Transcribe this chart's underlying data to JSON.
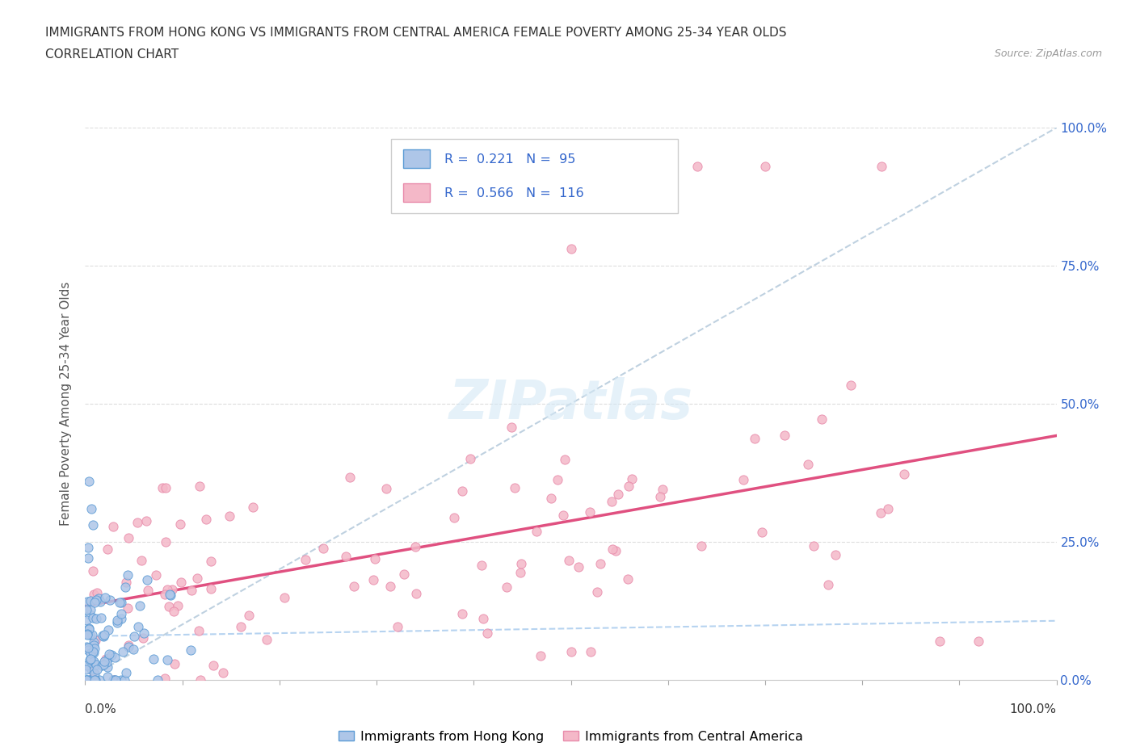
{
  "title_line1": "IMMIGRANTS FROM HONG KONG VS IMMIGRANTS FROM CENTRAL AMERICA FEMALE POVERTY AMONG 25-34 YEAR OLDS",
  "title_line2": "CORRELATION CHART",
  "source": "Source: ZipAtlas.com",
  "xlabel_bottom_left": "0.0%",
  "xlabel_bottom_right": "100.0%",
  "ylabel_left": "Female Poverty Among 25-34 Year Olds",
  "ytick_labels": [
    "0.0%",
    "25.0%",
    "50.0%",
    "75.0%",
    "100.0%"
  ],
  "ytick_values": [
    0.0,
    0.25,
    0.5,
    0.75,
    1.0
  ],
  "legend_hk_r": "0.221",
  "legend_hk_n": "95",
  "legend_ca_r": "0.566",
  "legend_ca_n": "116",
  "legend1_label": "Immigrants from Hong Kong",
  "legend2_label": "Immigrants from Central America",
  "color_hk_fill": "#aec6e8",
  "color_hk_edge": "#5b9bd5",
  "color_ca_fill": "#f4b8c8",
  "color_ca_edge": "#e88aaa",
  "color_ca_line": "#e05080",
  "color_hk_line": "#aaccee",
  "color_legend_r": "#3366cc",
  "color_legend_n": "#cc3333",
  "watermark_color": "#d4e8f5",
  "bg_color": "#ffffff",
  "grid_color": "#dddddd",
  "title_color": "#333333",
  "source_color": "#999999",
  "right_tick_color": "#3366cc",
  "xlim": [
    0.0,
    1.0
  ],
  "ylim": [
    0.0,
    1.0
  ],
  "hk_n": 95,
  "ca_n": 116,
  "hk_r": 0.221,
  "ca_r": 0.566
}
